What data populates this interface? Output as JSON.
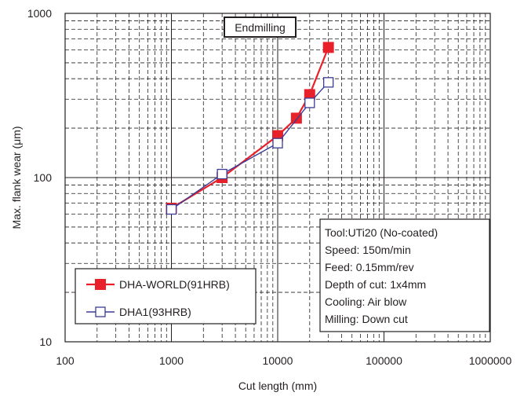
{
  "chart_data": {
    "type": "line",
    "title": "Endmilling",
    "xlabel": "Cut length (mm)",
    "ylabel": "Max. flank wear (μm)",
    "x_scale": "log",
    "y_scale": "log",
    "xlim": [
      100,
      1000000
    ],
    "ylim": [
      10,
      1000
    ],
    "grid": true,
    "x_tick_labels": [
      "100",
      "1000",
      "10000",
      "100000",
      "1000000"
    ],
    "y_tick_labels": [
      "10",
      "100",
      "1000"
    ],
    "legend_position": "bottom-left",
    "series": [
      {
        "name": "DHA-WORLD(91HRB)",
        "color": "#e8202a",
        "marker": "filled-square",
        "x": [
          1000,
          3000,
          10000,
          15000,
          20000,
          30000
        ],
        "y": [
          65,
          100,
          180,
          230,
          320,
          620
        ]
      },
      {
        "name": "DHA1(93HRB)",
        "color": "#3c3c96",
        "marker": "open-square",
        "x": [
          1000,
          3000,
          10000,
          20000,
          30000
        ],
        "y": [
          64,
          105,
          162,
          285,
          380
        ]
      }
    ],
    "conditions": [
      "Tool:UTi20 (No-coated)",
      "Speed: 150m/min",
      "Feed: 0.15mm/rev",
      "Depth of cut: 1x4mm",
      "Cooling: Air blow",
      "Milling: Down cut"
    ]
  }
}
